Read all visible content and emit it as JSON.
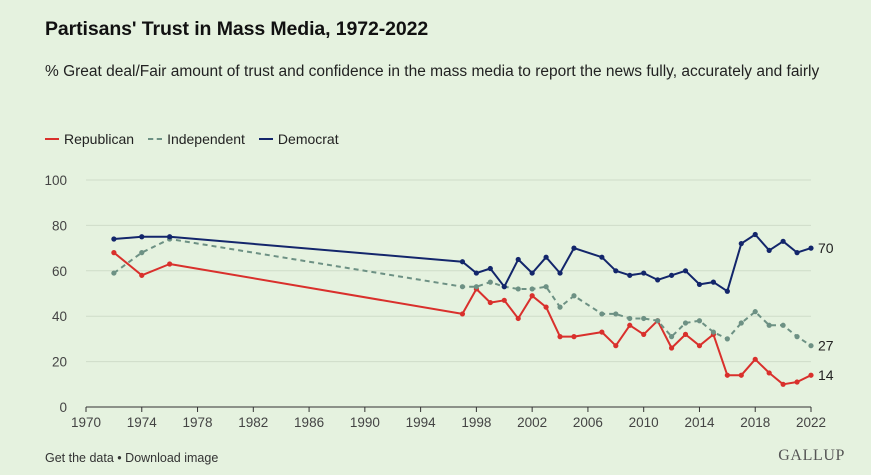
{
  "chart_data": {
    "type": "line",
    "title": "Partisans' Trust in Mass Media, 1972-2022",
    "subtitle": "% Great deal/Fair amount of trust and confidence in the mass media to report the news fully, accurately and fairly",
    "xlabel": "",
    "ylabel": "",
    "xlim": [
      1970,
      2022
    ],
    "ylim": [
      0,
      100
    ],
    "x_ticks": [
      1970,
      1974,
      1978,
      1982,
      1986,
      1990,
      1994,
      1998,
      2002,
      2006,
      2010,
      2014,
      2018,
      2022
    ],
    "y_ticks": [
      0,
      20,
      40,
      60,
      80,
      100
    ],
    "grid": true,
    "legend_position": "top-left",
    "series": [
      {
        "name": "Republican",
        "color": "#d9302c",
        "style": "solid",
        "end_label": "14",
        "points": [
          [
            1972,
            68
          ],
          [
            1974,
            58
          ],
          [
            1976,
            63
          ],
          [
            1997,
            41
          ],
          [
            1998,
            52
          ],
          [
            1999,
            46
          ],
          [
            2000,
            47
          ],
          [
            2001,
            39
          ],
          [
            2002,
            49
          ],
          [
            2003,
            44
          ],
          [
            2004,
            31
          ],
          [
            2005,
            31
          ],
          [
            2007,
            33
          ],
          [
            2008,
            27
          ],
          [
            2009,
            36
          ],
          [
            2010,
            32
          ],
          [
            2011,
            38
          ],
          [
            2012,
            26
          ],
          [
            2013,
            32
          ],
          [
            2014,
            27
          ],
          [
            2015,
            32
          ],
          [
            2016,
            14
          ],
          [
            2017,
            14
          ],
          [
            2018,
            21
          ],
          [
            2019,
            15
          ],
          [
            2020,
            10
          ],
          [
            2021,
            11
          ],
          [
            2022,
            14
          ]
        ]
      },
      {
        "name": "Independent",
        "color": "#6d9184",
        "style": "dashed",
        "end_label": "27",
        "points": [
          [
            1972,
            59
          ],
          [
            1974,
            68
          ],
          [
            1976,
            74
          ],
          [
            1997,
            53
          ],
          [
            1998,
            53
          ],
          [
            1999,
            55
          ],
          [
            2000,
            53
          ],
          [
            2001,
            52
          ],
          [
            2002,
            52
          ],
          [
            2003,
            53
          ],
          [
            2004,
            44
          ],
          [
            2005,
            49
          ],
          [
            2007,
            41
          ],
          [
            2008,
            41
          ],
          [
            2009,
            39
          ],
          [
            2010,
            39
          ],
          [
            2011,
            38
          ],
          [
            2012,
            31
          ],
          [
            2013,
            37
          ],
          [
            2014,
            38
          ],
          [
            2015,
            33
          ],
          [
            2016,
            30
          ],
          [
            2017,
            37
          ],
          [
            2018,
            42
          ],
          [
            2019,
            36
          ],
          [
            2020,
            36
          ],
          [
            2021,
            31
          ],
          [
            2022,
            27
          ]
        ]
      },
      {
        "name": "Democrat",
        "color": "#13266b",
        "style": "solid",
        "end_label": "70",
        "points": [
          [
            1972,
            74
          ],
          [
            1974,
            75
          ],
          [
            1976,
            75
          ],
          [
            1997,
            64
          ],
          [
            1998,
            59
          ],
          [
            1999,
            61
          ],
          [
            2000,
            53
          ],
          [
            2001,
            65
          ],
          [
            2002,
            59
          ],
          [
            2003,
            66
          ],
          [
            2004,
            59
          ],
          [
            2005,
            70
          ],
          [
            2007,
            66
          ],
          [
            2008,
            60
          ],
          [
            2009,
            58
          ],
          [
            2010,
            59
          ],
          [
            2011,
            56
          ],
          [
            2012,
            58
          ],
          [
            2013,
            60
          ],
          [
            2014,
            54
          ],
          [
            2015,
            55
          ],
          [
            2016,
            51
          ],
          [
            2017,
            72
          ],
          [
            2018,
            76
          ],
          [
            2019,
            69
          ],
          [
            2020,
            73
          ],
          [
            2021,
            68
          ],
          [
            2022,
            70
          ]
        ]
      }
    ]
  },
  "footer": {
    "get_data": "Get the data",
    "separator": "•",
    "download": "Download image"
  },
  "brand": "GALLUP"
}
